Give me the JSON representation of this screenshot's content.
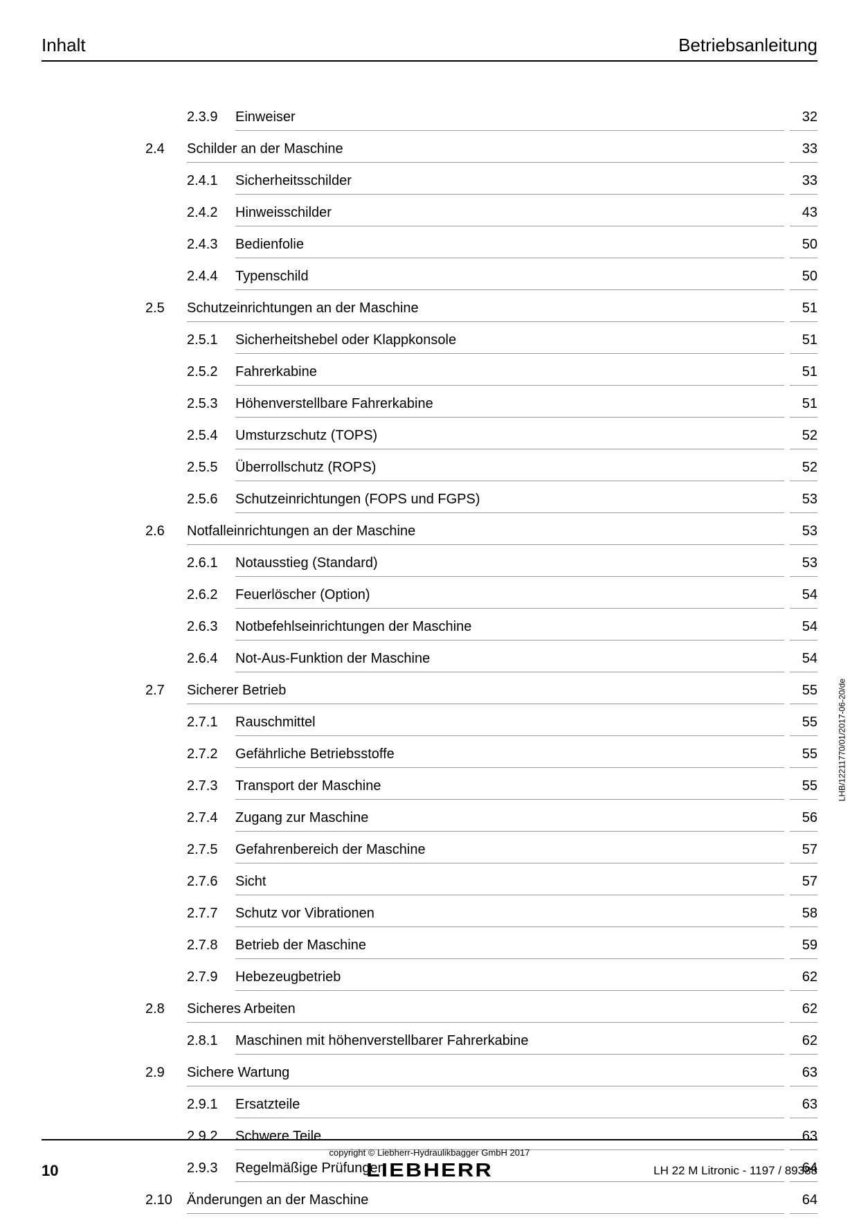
{
  "header": {
    "left": "Inhalt",
    "right": "Betriebsanleitung"
  },
  "toc": [
    {
      "level": 3,
      "num": "2.3.9",
      "title": "Einweiser",
      "page": "32"
    },
    {
      "level": 2,
      "num": "2.4",
      "title": "Schilder an der Maschine",
      "page": "33"
    },
    {
      "level": 3,
      "num": "2.4.1",
      "title": "Sicherheitsschilder",
      "page": "33"
    },
    {
      "level": 3,
      "num": "2.4.2",
      "title": "Hinweisschilder",
      "page": "43"
    },
    {
      "level": 3,
      "num": "2.4.3",
      "title": "Bedienfolie",
      "page": "50"
    },
    {
      "level": 3,
      "num": "2.4.4",
      "title": "Typenschild",
      "page": "50"
    },
    {
      "level": 2,
      "num": "2.5",
      "title": "Schutzeinrichtungen an der Maschine",
      "page": "51"
    },
    {
      "level": 3,
      "num": "2.5.1",
      "title": "Sicherheitshebel oder Klappkonsole",
      "page": "51"
    },
    {
      "level": 3,
      "num": "2.5.2",
      "title": "Fahrerkabine",
      "page": "51"
    },
    {
      "level": 3,
      "num": "2.5.3",
      "title": "Höhenverstellbare Fahrerkabine",
      "page": "51"
    },
    {
      "level": 3,
      "num": "2.5.4",
      "title": "Umsturzschutz (TOPS)",
      "page": "52"
    },
    {
      "level": 3,
      "num": "2.5.5",
      "title": "Überrollschutz (ROPS)",
      "page": "52"
    },
    {
      "level": 3,
      "num": "2.5.6",
      "title": "Schutzeinrichtungen (FOPS und FGPS)",
      "page": "53"
    },
    {
      "level": 2,
      "num": "2.6",
      "title": "Notfalleinrichtungen an der Maschine",
      "page": "53"
    },
    {
      "level": 3,
      "num": "2.6.1",
      "title": "Notausstieg (Standard)",
      "page": "53"
    },
    {
      "level": 3,
      "num": "2.6.2",
      "title": "Feuerlöscher (Option)",
      "page": "54"
    },
    {
      "level": 3,
      "num": "2.6.3",
      "title": "Notbefehlseinrichtungen der Maschine",
      "page": "54"
    },
    {
      "level": 3,
      "num": "2.6.4",
      "title": "Not-Aus-Funktion der Maschine",
      "page": "54"
    },
    {
      "level": 2,
      "num": "2.7",
      "title": "Sicherer Betrieb",
      "page": "55"
    },
    {
      "level": 3,
      "num": "2.7.1",
      "title": "Rauschmittel",
      "page": "55"
    },
    {
      "level": 3,
      "num": "2.7.2",
      "title": "Gefährliche Betriebsstoffe",
      "page": "55"
    },
    {
      "level": 3,
      "num": "2.7.3",
      "title": "Transport der Maschine",
      "page": "55"
    },
    {
      "level": 3,
      "num": "2.7.4",
      "title": "Zugang zur Maschine",
      "page": "56"
    },
    {
      "level": 3,
      "num": "2.7.5",
      "title": "Gefahrenbereich der Maschine",
      "page": "57"
    },
    {
      "level": 3,
      "num": "2.7.6",
      "title": "Sicht",
      "page": "57"
    },
    {
      "level": 3,
      "num": "2.7.7",
      "title": "Schutz vor Vibrationen",
      "page": "58"
    },
    {
      "level": 3,
      "num": "2.7.8",
      "title": "Betrieb der Maschine",
      "page": "59"
    },
    {
      "level": 3,
      "num": "2.7.9",
      "title": "Hebezeugbetrieb",
      "page": "62"
    },
    {
      "level": 2,
      "num": "2.8",
      "title": "Sicheres Arbeiten",
      "page": "62"
    },
    {
      "level": 3,
      "num": "2.8.1",
      "title": "Maschinen mit höhenverstellbarer Fahrerkabine",
      "page": "62"
    },
    {
      "level": 2,
      "num": "2.9",
      "title": "Sichere Wartung",
      "page": "63"
    },
    {
      "level": 3,
      "num": "2.9.1",
      "title": "Ersatzteile",
      "page": "63"
    },
    {
      "level": 3,
      "num": "2.9.2",
      "title": "Schwere Teile",
      "page": "63"
    },
    {
      "level": 3,
      "num": "2.9.3",
      "title": "Regelmäßige Prüfungen",
      "page": "64"
    },
    {
      "level": 2,
      "num": "2.10",
      "title": "Änderungen an der Maschine",
      "page": "64"
    }
  ],
  "side_text": "LHB/12211770/01/2017-06-20/de",
  "footer": {
    "copyright": "copyright © Liebherr-Hydraulikbagger GmbH 2017",
    "brand": "LIEBHERR",
    "page_number": "10",
    "doc_ref": "LH 22 M Litronic  - 1197 / 89388"
  }
}
